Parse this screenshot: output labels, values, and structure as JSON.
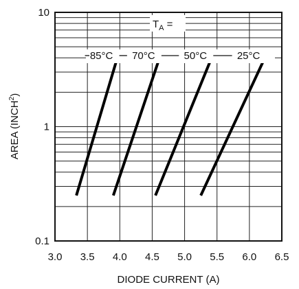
{
  "chart_data": {
    "type": "line",
    "x_axis": {
      "label": "DIODE CURRENT (A)",
      "range": [
        3.0,
        6.5
      ],
      "ticks": [
        3.0,
        3.5,
        4.0,
        4.5,
        5.0,
        5.5,
        6.0,
        6.5
      ],
      "tick_labels": [
        "3.0",
        "3.5",
        "4.0",
        "4.5",
        "5.0",
        "5.5",
        "6.0",
        "6.5"
      ],
      "scale": "linear"
    },
    "y_axis": {
      "label_main": "AREA (INCH",
      "label_sup": "2",
      "label_end": ")",
      "range": [
        0.1,
        10
      ],
      "scale": "log",
      "tick_labels": [
        {
          "value": 0.1,
          "label": "0.1"
        },
        {
          "value": 1,
          "label": "1"
        },
        {
          "value": 10,
          "label": "10"
        }
      ]
    },
    "grid": true,
    "annotation": {
      "text_main": "T",
      "text_sub": "A",
      "text_end": " ="
    },
    "series": [
      {
        "name": "85°C",
        "points": [
          [
            3.33,
            0.25
          ],
          [
            3.95,
            3.8
          ]
        ]
      },
      {
        "name": "70°C",
        "points": [
          [
            3.9,
            0.25
          ],
          [
            4.6,
            3.8
          ]
        ]
      },
      {
        "name": "50°C",
        "points": [
          [
            4.55,
            0.25
          ],
          [
            5.4,
            3.8
          ]
        ]
      },
      {
        "name": "25°C",
        "points": [
          [
            5.25,
            0.25
          ],
          [
            6.22,
            3.8
          ]
        ]
      }
    ]
  }
}
